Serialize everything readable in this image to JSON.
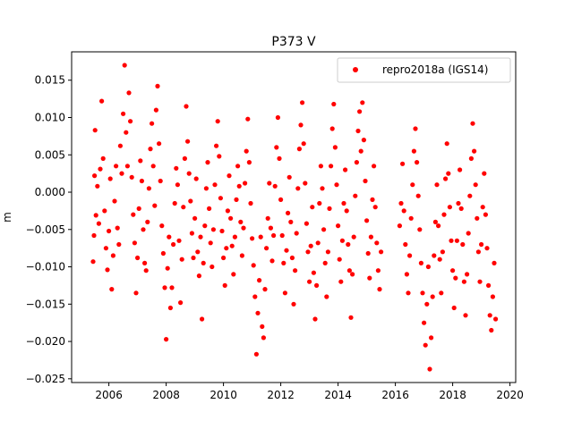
{
  "chart_data": {
    "type": "scatter",
    "title": "P373 V",
    "xlabel": "",
    "ylabel": "m",
    "xlim": [
      2004.7,
      2020.2
    ],
    "ylim": [
      -0.0255,
      0.0188
    ],
    "x_ticks": [
      {
        "value": 2006,
        "label": "2006"
      },
      {
        "value": 2008,
        "label": "2008"
      },
      {
        "value": 2010,
        "label": "2010"
      },
      {
        "value": 2012,
        "label": "2012"
      },
      {
        "value": 2014,
        "label": "2014"
      },
      {
        "value": 2016,
        "label": "2016"
      },
      {
        "value": 2018,
        "label": "2018"
      },
      {
        "value": 2020,
        "label": "2020"
      }
    ],
    "y_ticks": [
      {
        "value": 0.015,
        "label": "0.015"
      },
      {
        "value": 0.01,
        "label": "0.010"
      },
      {
        "value": 0.005,
        "label": "0.005"
      },
      {
        "value": 0.0,
        "label": "0.000"
      },
      {
        "value": -0.005,
        "label": "−0.005"
      },
      {
        "value": -0.01,
        "label": "−0.010"
      },
      {
        "value": -0.015,
        "label": "−0.015"
      },
      {
        "value": -0.02,
        "label": "−0.020"
      },
      {
        "value": -0.025,
        "label": "−0.025"
      }
    ],
    "grid": false,
    "legend": {
      "position": "top-right",
      "entries": [
        "repro2018a (IGS14)"
      ]
    },
    "series": [
      {
        "name": "repro2018a (IGS14)",
        "color": "#ff0000",
        "marker": "circle",
        "points": [
          [
            2005.45,
            -0.0093
          ],
          [
            2005.48,
            -0.0058
          ],
          [
            2005.5,
            0.0022
          ],
          [
            2005.52,
            0.0083
          ],
          [
            2005.55,
            -0.0031
          ],
          [
            2005.6,
            0.0008
          ],
          [
            2005.65,
            -0.0042
          ],
          [
            2005.7,
            0.0031
          ],
          [
            2005.75,
            0.0122
          ],
          [
            2005.8,
            0.0045
          ],
          [
            2005.85,
            -0.0025
          ],
          [
            2005.9,
            -0.0075
          ],
          [
            2005.95,
            -0.0104
          ],
          [
            2006.0,
            -0.0052
          ],
          [
            2006.05,
            0.0018
          ],
          [
            2006.1,
            -0.013
          ],
          [
            2006.15,
            -0.0085
          ],
          [
            2006.2,
            -0.0012
          ],
          [
            2006.25,
            0.0035
          ],
          [
            2006.3,
            -0.0048
          ],
          [
            2006.35,
            -0.007
          ],
          [
            2006.4,
            0.0062
          ],
          [
            2006.45,
            0.0025
          ],
          [
            2006.5,
            0.0105
          ],
          [
            2006.55,
            0.017
          ],
          [
            2006.6,
            0.008
          ],
          [
            2006.65,
            0.0035
          ],
          [
            2006.7,
            0.0133
          ],
          [
            2006.75,
            0.0095
          ],
          [
            2006.8,
            0.002
          ],
          [
            2006.85,
            -0.003
          ],
          [
            2006.9,
            -0.0068
          ],
          [
            2006.95,
            -0.0135
          ],
          [
            2007.0,
            -0.0088
          ],
          [
            2007.05,
            -0.0022
          ],
          [
            2007.1,
            0.0042
          ],
          [
            2007.15,
            0.0015
          ],
          [
            2007.2,
            -0.005
          ],
          [
            2007.25,
            -0.0095
          ],
          [
            2007.3,
            -0.0105
          ],
          [
            2007.35,
            -0.004
          ],
          [
            2007.4,
            0.0005
          ],
          [
            2007.45,
            0.0058
          ],
          [
            2007.5,
            0.0092
          ],
          [
            2007.55,
            0.0035
          ],
          [
            2007.6,
            -0.0018
          ],
          [
            2007.65,
            0.011
          ],
          [
            2007.7,
            0.0142
          ],
          [
            2007.75,
            0.0065
          ],
          [
            2007.8,
            0.0015
          ],
          [
            2007.85,
            -0.0045
          ],
          [
            2007.9,
            -0.0082
          ],
          [
            2007.95,
            -0.0128
          ],
          [
            2008.0,
            -0.0197
          ],
          [
            2008.05,
            -0.0102
          ],
          [
            2008.1,
            -0.006
          ],
          [
            2008.15,
            -0.0155
          ],
          [
            2008.2,
            -0.0128
          ],
          [
            2008.25,
            -0.007
          ],
          [
            2008.3,
            -0.0015
          ],
          [
            2008.35,
            0.0032
          ],
          [
            2008.4,
            0.001
          ],
          [
            2008.45,
            -0.0065
          ],
          [
            2008.5,
            -0.0148
          ],
          [
            2008.55,
            -0.009
          ],
          [
            2008.6,
            -0.002
          ],
          [
            2008.65,
            0.0045
          ],
          [
            2008.7,
            0.0115
          ],
          [
            2008.75,
            0.0068
          ],
          [
            2008.8,
            0.0025
          ],
          [
            2008.85,
            -0.0012
          ],
          [
            2008.9,
            -0.0055
          ],
          [
            2008.95,
            -0.0088
          ],
          [
            2009.0,
            -0.0035
          ],
          [
            2009.05,
            0.0018
          ],
          [
            2009.1,
            -0.008
          ],
          [
            2009.15,
            -0.0112
          ],
          [
            2009.2,
            -0.006
          ],
          [
            2009.25,
            -0.017
          ],
          [
            2009.3,
            -0.0095
          ],
          [
            2009.35,
            -0.0045
          ],
          [
            2009.4,
            0.0005
          ],
          [
            2009.45,
            0.004
          ],
          [
            2009.5,
            -0.0022
          ],
          [
            2009.55,
            -0.0068
          ],
          [
            2009.6,
            -0.01
          ],
          [
            2009.65,
            -0.005
          ],
          [
            2009.7,
            0.001
          ],
          [
            2009.75,
            0.0062
          ],
          [
            2009.8,
            0.0095
          ],
          [
            2009.85,
            0.0048
          ],
          [
            2009.9,
            -0.0008
          ],
          [
            2009.95,
            -0.0052
          ],
          [
            2010.0,
            -0.0088
          ],
          [
            2010.05,
            -0.0125
          ],
          [
            2010.1,
            -0.0075
          ],
          [
            2010.15,
            -0.0025
          ],
          [
            2010.2,
            0.0022
          ],
          [
            2010.25,
            -0.0035
          ],
          [
            2010.3,
            -0.0072
          ],
          [
            2010.35,
            -0.011
          ],
          [
            2010.4,
            -0.006
          ],
          [
            2010.45,
            -0.001
          ],
          [
            2010.5,
            0.0035
          ],
          [
            2010.55,
            0.0008
          ],
          [
            2010.6,
            -0.004
          ],
          [
            2010.65,
            -0.0085
          ],
          [
            2010.7,
            -0.0048
          ],
          [
            2010.75,
            0.0012
          ],
          [
            2010.8,
            0.0055
          ],
          [
            2010.85,
            0.0098
          ],
          [
            2010.9,
            0.004
          ],
          [
            2010.95,
            -0.0015
          ],
          [
            2011.0,
            -0.0062
          ],
          [
            2011.05,
            -0.0098
          ],
          [
            2011.1,
            -0.014
          ],
          [
            2011.15,
            -0.0217
          ],
          [
            2011.2,
            -0.0162
          ],
          [
            2011.25,
            -0.0118
          ],
          [
            2011.3,
            -0.006
          ],
          [
            2011.35,
            -0.018
          ],
          [
            2011.4,
            -0.0195
          ],
          [
            2011.45,
            -0.013
          ],
          [
            2011.5,
            -0.0075
          ],
          [
            2011.55,
            -0.0035
          ],
          [
            2011.6,
            0.0012
          ],
          [
            2011.65,
            -0.0048
          ],
          [
            2011.7,
            -0.0092
          ],
          [
            2011.75,
            -0.0058
          ],
          [
            2011.8,
            0.0008
          ],
          [
            2011.85,
            0.006
          ],
          [
            2011.9,
            0.01
          ],
          [
            2011.95,
            0.0045
          ],
          [
            2012.0,
            -0.001
          ],
          [
            2012.05,
            -0.0058
          ],
          [
            2012.1,
            -0.0095
          ],
          [
            2012.15,
            -0.0135
          ],
          [
            2012.2,
            -0.0078
          ],
          [
            2012.25,
            -0.0028
          ],
          [
            2012.3,
            0.002
          ],
          [
            2012.35,
            -0.004
          ],
          [
            2012.4,
            -0.0088
          ],
          [
            2012.45,
            -0.015
          ],
          [
            2012.5,
            -0.0105
          ],
          [
            2012.55,
            -0.0055
          ],
          [
            2012.6,
            0.0005
          ],
          [
            2012.65,
            0.0058
          ],
          [
            2012.7,
            0.009
          ],
          [
            2012.75,
            0.012
          ],
          [
            2012.8,
            0.0065
          ],
          [
            2012.85,
            0.0012
          ],
          [
            2012.9,
            -0.0042
          ],
          [
            2012.95,
            -0.008
          ],
          [
            2013.0,
            -0.012
          ],
          [
            2013.05,
            -0.0072
          ],
          [
            2013.1,
            -0.002
          ],
          [
            2013.15,
            -0.0108
          ],
          [
            2013.2,
            -0.017
          ],
          [
            2013.25,
            -0.0125
          ],
          [
            2013.3,
            -0.0068
          ],
          [
            2013.35,
            -0.0015
          ],
          [
            2013.4,
            0.0035
          ],
          [
            2013.45,
            0.0005
          ],
          [
            2013.5,
            -0.005
          ],
          [
            2013.55,
            -0.0095
          ],
          [
            2013.6,
            -0.014
          ],
          [
            2013.65,
            -0.008
          ],
          [
            2013.7,
            -0.0022
          ],
          [
            2013.75,
            0.0035
          ],
          [
            2013.8,
            0.0085
          ],
          [
            2013.85,
            0.0118
          ],
          [
            2013.9,
            0.006
          ],
          [
            2013.95,
            0.001
          ],
          [
            2014.0,
            -0.0045
          ],
          [
            2014.05,
            -0.009
          ],
          [
            2014.1,
            -0.012
          ],
          [
            2014.15,
            -0.0065
          ],
          [
            2014.2,
            -0.0015
          ],
          [
            2014.25,
            0.003
          ],
          [
            2014.3,
            -0.0025
          ],
          [
            2014.35,
            -0.007
          ],
          [
            2014.4,
            -0.0105
          ],
          [
            2014.45,
            -0.0168
          ],
          [
            2014.5,
            -0.011
          ],
          [
            2014.55,
            -0.006
          ],
          [
            2014.6,
            -0.0005
          ],
          [
            2014.65,
            0.004
          ],
          [
            2014.7,
            0.0082
          ],
          [
            2014.75,
            0.0108
          ],
          [
            2014.8,
            0.0055
          ],
          [
            2014.85,
            0.012
          ],
          [
            2014.9,
            0.007
          ],
          [
            2014.95,
            0.0015
          ],
          [
            2015.0,
            -0.0038
          ],
          [
            2015.05,
            -0.0082
          ],
          [
            2015.1,
            -0.0115
          ],
          [
            2015.15,
            -0.006
          ],
          [
            2015.2,
            -0.001
          ],
          [
            2015.25,
            0.0035
          ],
          [
            2015.3,
            -0.002
          ],
          [
            2015.35,
            -0.0068
          ],
          [
            2015.4,
            -0.0105
          ],
          [
            2015.45,
            -0.013
          ],
          [
            2015.5,
            -0.008
          ],
          [
            2016.15,
            -0.0045
          ],
          [
            2016.2,
            -0.0015
          ],
          [
            2016.25,
            0.0038
          ],
          [
            2016.3,
            -0.0025
          ],
          [
            2016.35,
            -0.007
          ],
          [
            2016.4,
            -0.011
          ],
          [
            2016.45,
            -0.0135
          ],
          [
            2016.5,
            -0.0085
          ],
          [
            2016.55,
            -0.0035
          ],
          [
            2016.6,
            0.001
          ],
          [
            2016.65,
            0.0055
          ],
          [
            2016.7,
            0.0085
          ],
          [
            2016.75,
            0.004
          ],
          [
            2016.8,
            -0.0005
          ],
          [
            2016.85,
            -0.005
          ],
          [
            2016.9,
            -0.0095
          ],
          [
            2016.95,
            -0.0135
          ],
          [
            2017.0,
            -0.0175
          ],
          [
            2017.05,
            -0.0205
          ],
          [
            2017.1,
            -0.015
          ],
          [
            2017.15,
            -0.01
          ],
          [
            2017.2,
            -0.0237
          ],
          [
            2017.25,
            -0.0195
          ],
          [
            2017.3,
            -0.014
          ],
          [
            2017.35,
            -0.0085
          ],
          [
            2017.4,
            -0.004
          ],
          [
            2017.45,
            0.001
          ],
          [
            2017.5,
            -0.0045
          ],
          [
            2017.55,
            -0.009
          ],
          [
            2017.6,
            -0.0135
          ],
          [
            2017.65,
            -0.008
          ],
          [
            2017.7,
            -0.003
          ],
          [
            2017.75,
            0.0018
          ],
          [
            2017.8,
            0.0065
          ],
          [
            2017.85,
            0.0025
          ],
          [
            2017.9,
            -0.002
          ],
          [
            2017.95,
            -0.0065
          ],
          [
            2018.0,
            -0.0105
          ],
          [
            2018.05,
            -0.0155
          ],
          [
            2018.1,
            -0.0115
          ],
          [
            2018.15,
            -0.0065
          ],
          [
            2018.2,
            -0.0015
          ],
          [
            2018.25,
            0.003
          ],
          [
            2018.3,
            -0.0022
          ],
          [
            2018.35,
            -0.007
          ],
          [
            2018.4,
            -0.012
          ],
          [
            2018.45,
            -0.0165
          ],
          [
            2018.5,
            -0.011
          ],
          [
            2018.55,
            -0.0055
          ],
          [
            2018.6,
            -0.0005
          ],
          [
            2018.65,
            0.0045
          ],
          [
            2018.7,
            0.0092
          ],
          [
            2018.75,
            0.0055
          ],
          [
            2018.8,
            0.001
          ],
          [
            2018.85,
            -0.0035
          ],
          [
            2018.9,
            -0.008
          ],
          [
            2018.95,
            -0.012
          ],
          [
            2019.0,
            -0.007
          ],
          [
            2019.05,
            -0.002
          ],
          [
            2019.1,
            0.0025
          ],
          [
            2019.15,
            -0.003
          ],
          [
            2019.2,
            -0.0075
          ],
          [
            2019.25,
            -0.0125
          ],
          [
            2019.3,
            -0.0165
          ],
          [
            2019.35,
            -0.0185
          ],
          [
            2019.4,
            -0.014
          ],
          [
            2019.45,
            -0.0095
          ],
          [
            2019.5,
            -0.017
          ]
        ]
      }
    ]
  }
}
